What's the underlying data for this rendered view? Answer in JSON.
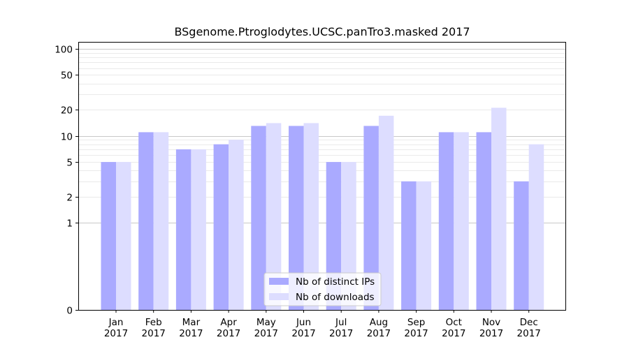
{
  "chart_data": {
    "type": "bar",
    "title": "BSgenome.Ptroglodytes.UCSC.panTro3.masked 2017",
    "xlabel": "",
    "ylabel": "",
    "yscale": "symlog",
    "ylim": [
      0,
      120
    ],
    "yticks": [
      {
        "value": 0,
        "label": "0"
      },
      {
        "value": 1,
        "label": "1"
      },
      {
        "value": 2,
        "label": "2"
      },
      {
        "value": 5,
        "label": "5"
      },
      {
        "value": 10,
        "label": "10"
      },
      {
        "value": 20,
        "label": "20"
      },
      {
        "value": 50,
        "label": "50"
      },
      {
        "value": 100,
        "label": "100"
      }
    ],
    "categories": [
      {
        "month": "Jan",
        "year": "2017"
      },
      {
        "month": "Feb",
        "year": "2017"
      },
      {
        "month": "Mar",
        "year": "2017"
      },
      {
        "month": "Apr",
        "year": "2017"
      },
      {
        "month": "May",
        "year": "2017"
      },
      {
        "month": "Jun",
        "year": "2017"
      },
      {
        "month": "Jul",
        "year": "2017"
      },
      {
        "month": "Aug",
        "year": "2017"
      },
      {
        "month": "Sep",
        "year": "2017"
      },
      {
        "month": "Oct",
        "year": "2017"
      },
      {
        "month": "Nov",
        "year": "2017"
      },
      {
        "month": "Dec",
        "year": "2017"
      }
    ],
    "series": [
      {
        "name": "Nb of distinct IPs",
        "color": "#aaaaff",
        "values": [
          5,
          11,
          7,
          8,
          13,
          13,
          5,
          13,
          3,
          11,
          11,
          3
        ]
      },
      {
        "name": "Nb of downloads",
        "color": "#ddddff",
        "values": [
          5,
          11,
          7,
          9,
          14,
          14,
          5,
          17,
          3,
          11,
          21,
          8
        ]
      }
    ],
    "legend_position": "bottom-center",
    "grid": true
  }
}
